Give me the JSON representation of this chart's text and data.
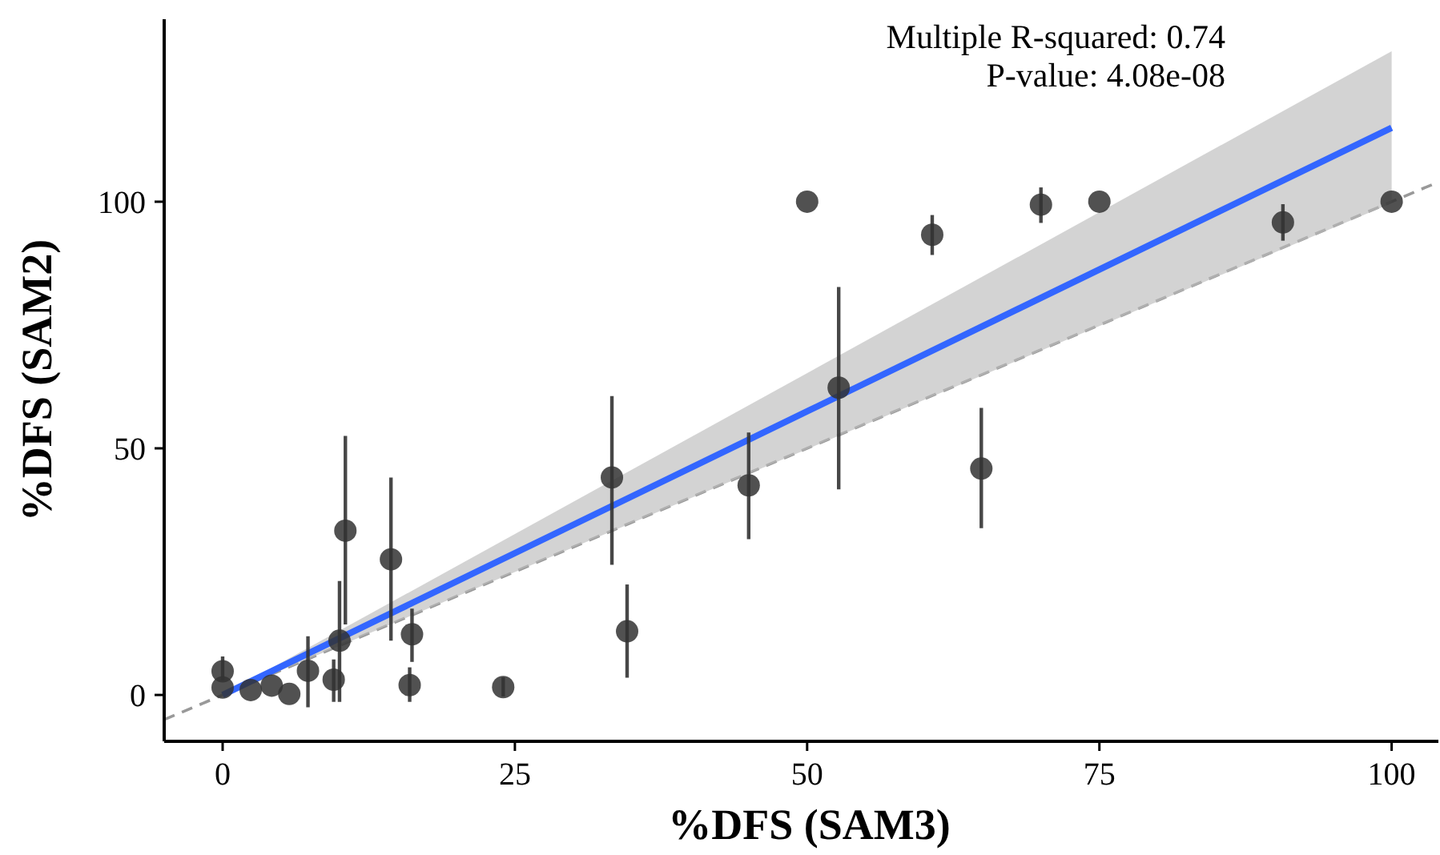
{
  "chart_data": {
    "type": "scatter",
    "xlabel": "%DFS (SAM3)",
    "ylabel": "%DFS (SAM2)",
    "xlim": [
      -5,
      104
    ],
    "ylim": [
      -9.4,
      137
    ],
    "xticks": [
      0,
      25,
      50,
      75,
      100
    ],
    "yticks": [
      0,
      50,
      100
    ],
    "grid": false,
    "marker": "circle",
    "annotations": [
      "Multiple R-squared:  0.74",
      "P-value:  4.08e-08"
    ],
    "series": [
      {
        "type": "line",
        "color": "#999999",
        "line_style": "dashed",
        "marker": "none",
        "x": [
          -5,
          104
        ],
        "values": [
          -5,
          104
        ]
      },
      {
        "type": "line",
        "color": "#3366ff",
        "line_style": "solid",
        "marker": "none",
        "x": [
          0,
          100
        ],
        "values": [
          0,
          115
        ],
        "lower": [
          0,
          99.7
        ],
        "upper": [
          0,
          130.5
        ]
      },
      {
        "color": "#333333",
        "x": [
          0,
          0,
          2.4,
          4.2,
          5.7,
          7.3,
          9.5,
          10,
          10.5,
          14.4,
          16.2,
          16,
          24,
          33.3,
          34.6,
          45,
          52.7,
          50,
          64.9,
          60.7,
          70,
          75,
          90.7,
          100
        ],
        "values": [
          4.8,
          1.5,
          1.0,
          1.9,
          0.2,
          4.9,
          3.1,
          11.0,
          33.3,
          27.5,
          12.3,
          2.0,
          1.6,
          44.1,
          12.9,
          42.5,
          62.3,
          100,
          45.9,
          93.3,
          99.4,
          100,
          95.8,
          100
        ],
        "errors": [
          [
            3,
            7.8
          ],
          null,
          null,
          null,
          null,
          [
            -2.5,
            11.9
          ],
          [
            -1.4,
            7.2
          ],
          [
            -1.4,
            23.1
          ],
          [
            14.3,
            52.5
          ],
          [
            11,
            44.1
          ],
          [
            6.7,
            17.5
          ],
          [
            -1.4,
            5.6
          ],
          [
            -0.3,
            3.6
          ],
          [
            26.4,
            60.6
          ],
          [
            3.5,
            22.4
          ],
          [
            31.6,
            53.2
          ],
          [
            41.7,
            82.7
          ],
          null,
          [
            33.8,
            58.2
          ],
          [
            89.2,
            97.3
          ],
          [
            95.7,
            102.9
          ],
          null,
          [
            92.1,
            99.5
          ],
          null
        ]
      }
    ]
  }
}
